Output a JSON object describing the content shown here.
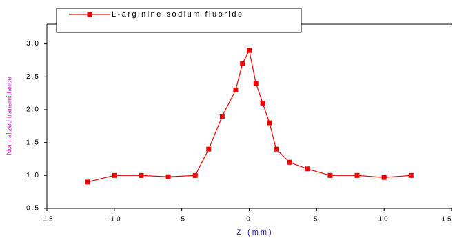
{
  "chart_data": {
    "type": "line",
    "x_label": "Z (mm)",
    "y_label": "Normalized transmittance",
    "x": [
      -12,
      -10,
      -8,
      -6,
      -4,
      -3,
      -2,
      -1,
      -0.5,
      0,
      0.5,
      1,
      1.5,
      2,
      3,
      4.3,
      6,
      8,
      10,
      12
    ],
    "series": [
      {
        "name": "L-arginine sodium fluoride",
        "color": "#ee0000",
        "values": [
          0.9,
          1.0,
          1.0,
          0.98,
          1.0,
          1.4,
          1.9,
          2.3,
          2.7,
          2.9,
          2.4,
          2.1,
          1.8,
          1.4,
          1.2,
          1.1,
          1.0,
          1.0,
          0.97,
          1.0
        ]
      }
    ],
    "xlim": [
      -15,
      15
    ],
    "xticks": [
      -15,
      -10,
      -5,
      0,
      5,
      10,
      15
    ],
    "ylim": [
      0.5,
      3.3
    ],
    "yticks": [
      0.5,
      1.0,
      1.5,
      2.0,
      2.5,
      3.0
    ],
    "legend": "top"
  }
}
